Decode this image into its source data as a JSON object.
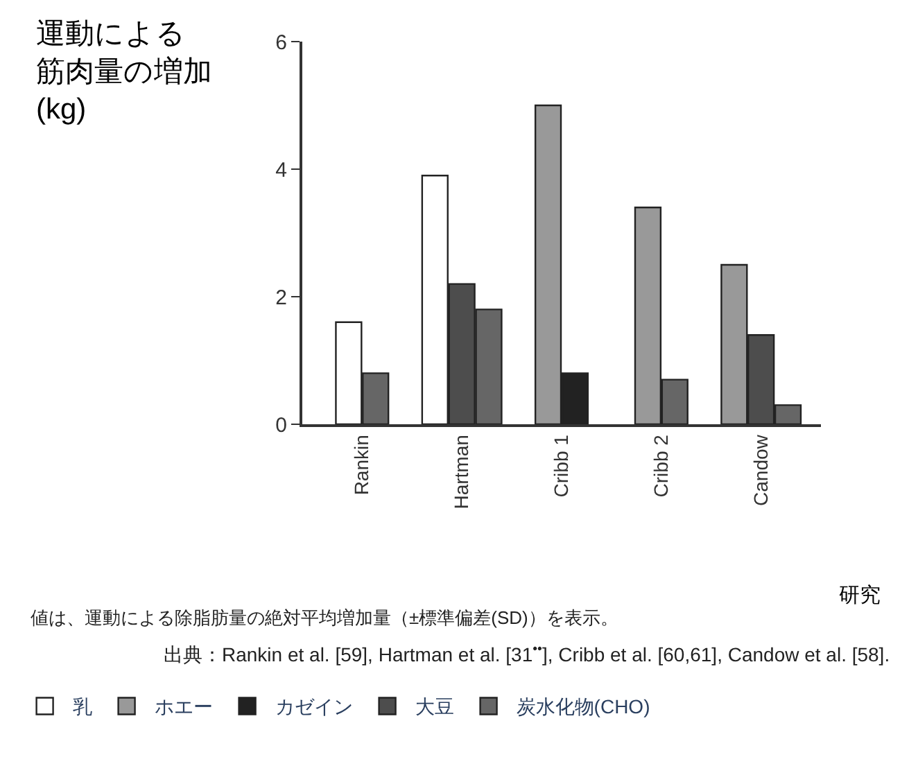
{
  "chart_data": {
    "type": "bar",
    "ylabel": "運動による筋肉量の増加(kg)",
    "xlabel": "研究",
    "categories": [
      "Rankin",
      "Hartman",
      "Cribb 1",
      "Cribb 2",
      "Candow"
    ],
    "series": [
      {
        "name": "乳",
        "color": "#ffffff",
        "values": [
          1.6,
          3.9,
          null,
          null,
          null
        ]
      },
      {
        "name": "ホエー",
        "color": "#999999",
        "values": [
          null,
          null,
          5.0,
          3.4,
          2.5
        ]
      },
      {
        "name": "カゼイン",
        "color": "#222222",
        "values": [
          null,
          null,
          0.8,
          null,
          null
        ]
      },
      {
        "name": "大豆",
        "color": "#4d4d4d",
        "values": [
          null,
          2.2,
          null,
          null,
          1.4
        ]
      },
      {
        "name": "炭水化物(CHO)",
        "color": "#666666",
        "values": [
          0.8,
          1.8,
          null,
          0.7,
          0.3
        ]
      }
    ],
    "ylim": [
      0,
      6
    ],
    "yticks": [
      0,
      2,
      4,
      6
    ],
    "grid": false,
    "legend": "bottom",
    "annotations": [
      "値は、運動による除脂肪量の絶対平均増加量（±標準偏差(SD)）を表示。",
      "出典：Rankin et al. [59], Hartman et al. [31$^{••}$], Cribb et al. [60,61], Candow et al. [58]."
    ]
  }
}
